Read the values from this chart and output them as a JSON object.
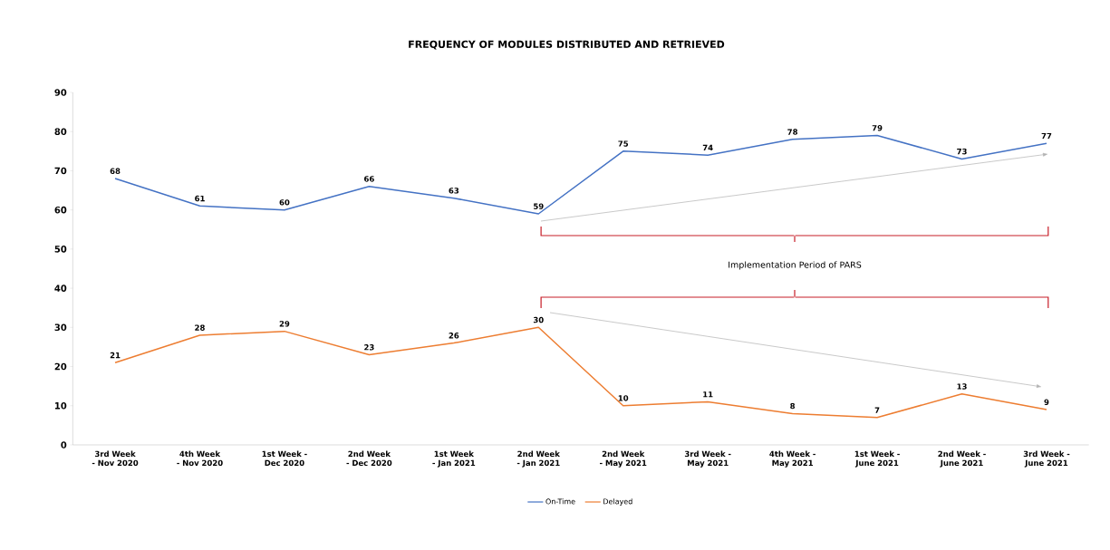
{
  "chart_data": {
    "type": "line",
    "title": "FREQUENCY OF MODULES DISTRIBUTED AND RETRIEVED",
    "categories": [
      "3rd Week - Nov 2020",
      "4th Week - Nov 2020",
      "1st Week - Dec 2020",
      "2nd Week - Dec 2020",
      "1st Week - Jan 2021",
      "2nd Week - Jan 2021",
      "2nd Week - May 2021",
      "3rd Week - May 2021",
      "4th Week - May 2021",
      "1st Week - June 2021",
      "2nd Week - June 2021",
      "3rd Week - June 2021"
    ],
    "series": [
      {
        "name": "On-Time",
        "color": "#4472c4",
        "values": [
          68,
          61,
          60,
          66,
          63,
          59,
          75,
          74,
          78,
          79,
          73,
          77
        ]
      },
      {
        "name": "Delayed",
        "color": "#ed7d31",
        "values": [
          21,
          28,
          29,
          23,
          26,
          30,
          10,
          11,
          8,
          7,
          13,
          9
        ]
      }
    ],
    "ylim": [
      0,
      90
    ],
    "yticks": [
      0,
      10,
      20,
      30,
      40,
      50,
      60,
      70,
      80,
      90
    ],
    "data_labels": true,
    "legend": "bottom",
    "marker": "none",
    "line_style": "solid",
    "annotations": [
      "Implementation Period of PARS"
    ]
  }
}
